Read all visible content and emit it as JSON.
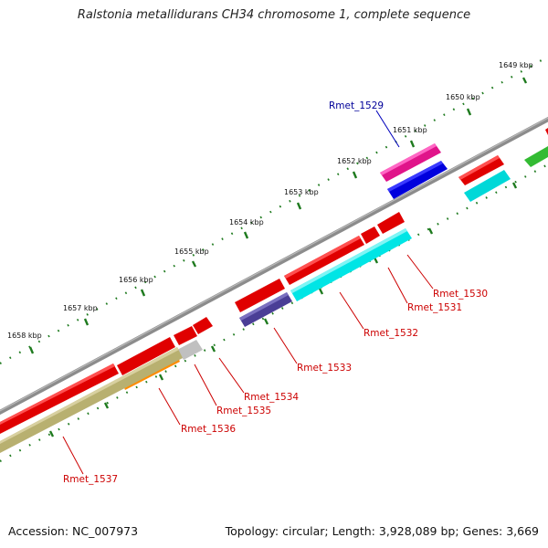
{
  "title": "Ralstonia metallidurans CH34 chromosome 1, complete sequence",
  "footer": {
    "accession": "Accession: NC_007973",
    "topology": "Topology: circular; Length: 3,928,089 bp; Genes: 3,669"
  },
  "colors": {
    "backbone": "#808080",
    "tick": "#1e7a1e",
    "label_red": "#cc0000",
    "label_blue": "#000099"
  },
  "ruler": {
    "unit": "kbp",
    "ticks": [
      "1649 kbp",
      "1650 kbp",
      "1651 kbp",
      "1652 kbp",
      "1653 kbp",
      "1654 kbp",
      "1655 kbp",
      "1656 kbp",
      "1657 kbp",
      "1658 kbp"
    ]
  },
  "genes": [
    {
      "label": "Rmet_1529",
      "label_color": "#000099",
      "color": "#ff2fa0",
      "strand": "+"
    },
    {
      "label": "Rmet_1530",
      "label_color": "#cc0000",
      "color": "#00e5e5",
      "strand": "-"
    },
    {
      "label": "Rmet_1531",
      "label_color": "#cc0000",
      "color": "#ff1010",
      "strand": "+"
    },
    {
      "label": "Rmet_1532",
      "label_color": "#cc0000",
      "color": "#00e5e5",
      "strand": "-"
    },
    {
      "label": "Rmet_1533",
      "label_color": "#cc0000",
      "color": "#4a3e96",
      "strand": "-"
    },
    {
      "label": "Rmet_1534",
      "label_color": "#cc0000",
      "color": "#ff1010",
      "strand": "+"
    },
    {
      "label": "Rmet_1535",
      "label_color": "#cc0000",
      "color": "#c8c8c8",
      "strand": "-"
    },
    {
      "label": "Rmet_1536",
      "label_color": "#cc0000",
      "color": "#ff8c00",
      "strand": "-"
    },
    {
      "label": "Rmet_1537",
      "label_color": "#cc0000",
      "color": "#b8b070",
      "strand": "-"
    }
  ]
}
